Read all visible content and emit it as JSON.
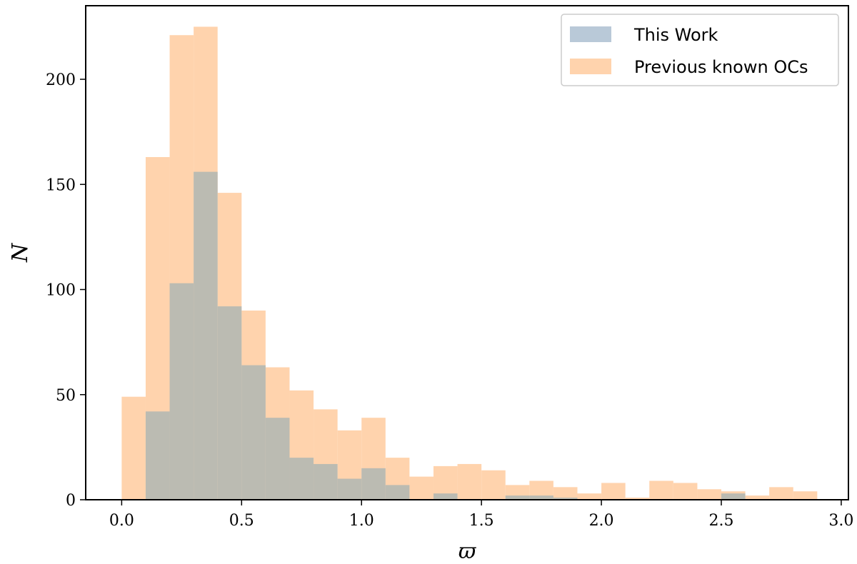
{
  "chart_data": {
    "type": "bar",
    "title": "",
    "xlabel": "ϖ",
    "ylabel": "N",
    "xlim": [
      -0.15,
      3.03
    ],
    "ylim": [
      0,
      235
    ],
    "xticks": [
      "0.0",
      "0.5",
      "1.0",
      "1.5",
      "2.0",
      "2.5",
      "3.0"
    ],
    "yticks": [
      "0",
      "50",
      "100",
      "150",
      "200"
    ],
    "bin_width": 0.1,
    "bin_starts": [
      0.0,
      0.1,
      0.2,
      0.3,
      0.4,
      0.5,
      0.6,
      0.7,
      0.8,
      0.9,
      1.0,
      1.1,
      1.2,
      1.3,
      1.4,
      1.5,
      1.6,
      1.7,
      1.8,
      1.9,
      2.0,
      2.1,
      2.2,
      2.3,
      2.4,
      2.5,
      2.6,
      2.7,
      2.8
    ],
    "grid": false,
    "legend_position": "top-right",
    "series": [
      {
        "name": "Previous known OCs",
        "color": "#ffd3ad",
        "values": [
          49,
          163,
          221,
          225,
          146,
          90,
          63,
          52,
          43,
          33,
          39,
          20,
          11,
          16,
          17,
          14,
          7,
          9,
          6,
          3,
          8,
          1,
          9,
          8,
          5,
          4,
          2,
          6,
          4
        ]
      },
      {
        "name": "This Work",
        "color": "#b9c9d8",
        "overlap_color": "#bbbbb2",
        "values": [
          0,
          42,
          103,
          156,
          92,
          64,
          39,
          20,
          17,
          10,
          15,
          7,
          0,
          3,
          0,
          0,
          2,
          2,
          1,
          0,
          0,
          0,
          0,
          0,
          0,
          3,
          0,
          0,
          0
        ]
      }
    ]
  }
}
